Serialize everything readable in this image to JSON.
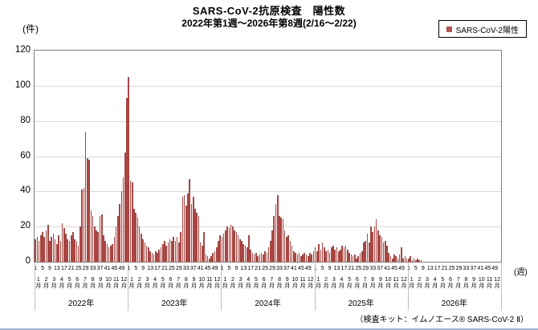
{
  "title": "SARS-CoV-2抗原検査　陽性数",
  "subtitle": "2022年第1週～2026年第8週(2/16～2/22)",
  "legend": {
    "label": "SARS-CoV-2陽性",
    "marker_color": "#c0504d"
  },
  "y_axis": {
    "unit": "(件)",
    "ticks": [
      0,
      20,
      40,
      60,
      80,
      100,
      120
    ],
    "max": 120
  },
  "x_axis": {
    "unit": "(週)",
    "week_ticks": [
      1,
      5,
      9,
      13,
      17,
      21,
      25,
      29,
      33,
      37,
      41,
      45,
      49
    ],
    "month_labels": [
      "1月",
      "2月",
      "3月",
      "4月",
      "5月",
      "6月",
      "7月",
      "8月",
      "9月",
      "10月",
      "11月",
      "12月"
    ],
    "year_labels": [
      "2022年",
      "2023年",
      "2024年",
      "2025年",
      "2026年"
    ]
  },
  "footer": "（検査キット：イムノエース® SARS-CoV-2 Ⅱ）",
  "chart_data": {
    "type": "bar",
    "title": "SARS-CoV-2抗原検査　陽性数",
    "subtitle": "2022年第1週～2026年第8週(2/16～2/22)",
    "xlabel": "週",
    "ylabel": "件",
    "ylim": [
      0,
      120
    ],
    "grid": "horizontal",
    "legend_position": "top-right",
    "bar_color": "#a84642",
    "series_name": "SARS-CoV-2陽性",
    "weeks_per_year": 52,
    "years": [
      {
        "year": "2022年",
        "values": [
          13,
          14,
          12,
          15,
          17,
          14,
          18,
          21,
          12,
          14,
          16,
          13,
          10,
          15,
          12,
          22,
          19,
          16,
          13,
          12,
          15,
          17,
          13,
          12,
          9,
          20,
          41,
          42,
          74,
          59,
          58,
          29,
          26,
          20,
          18,
          17,
          26,
          27,
          15,
          12,
          10,
          8,
          9,
          10,
          14,
          20,
          26,
          33,
          40,
          48,
          62,
          93
        ]
      },
      {
        "year": "2023年",
        "values": [
          105,
          46,
          45,
          30,
          28,
          25,
          20,
          16,
          13,
          11,
          9,
          8,
          6,
          5,
          4,
          6,
          5,
          7,
          8,
          10,
          12,
          9,
          11,
          13,
          12,
          14,
          12,
          14,
          11,
          17,
          37,
          38,
          32,
          39,
          47,
          33,
          37,
          30,
          28,
          26,
          11,
          9,
          17,
          4,
          3,
          2,
          3,
          5,
          6,
          8,
          12,
          15
        ]
      },
      {
        "year": "2024年",
        "values": [
          14,
          16,
          18,
          20,
          19,
          21,
          20,
          18,
          17,
          15,
          13,
          12,
          10,
          9,
          8,
          15,
          7,
          5,
          4,
          5,
          3,
          4,
          5,
          4,
          6,
          5,
          8,
          12,
          18,
          26,
          33,
          38,
          26,
          25,
          24,
          18,
          14,
          15,
          12,
          9,
          6,
          5,
          4,
          5,
          3,
          4,
          5,
          4,
          3,
          5,
          4,
          6
        ]
      },
      {
        "year": "2025年",
        "values": [
          8,
          6,
          10,
          7,
          11,
          8,
          6,
          7,
          5,
          8,
          9,
          7,
          8,
          6,
          7,
          9,
          8,
          9,
          7,
          5,
          4,
          3,
          4,
          2,
          3,
          5,
          6,
          11,
          12,
          16,
          11,
          20,
          17,
          20,
          24,
          18,
          15,
          14,
          11,
          12,
          9,
          5,
          3,
          2,
          4,
          3,
          2,
          4,
          8,
          2,
          3,
          2
        ]
      },
      {
        "year": "2026年",
        "values": [
          2,
          3,
          1,
          2,
          1,
          2,
          1,
          1
        ]
      }
    ]
  }
}
